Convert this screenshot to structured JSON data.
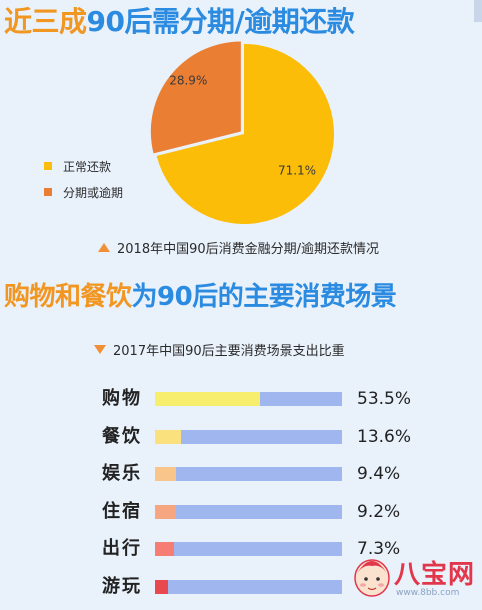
{
  "header": {
    "title_highlight": "近三成",
    "title_rest": "90后需分期/逾期还款"
  },
  "pie_section": {
    "caption": "2018年中国90后消费金融分期/逾期还款情况"
  },
  "section2": {
    "title_highlight": "购物和餐饮",
    "title_rest": "为90后的主要消费场景"
  },
  "bar_section": {
    "caption": "2017年中国90后主要消费场景支出比重"
  },
  "colors": {
    "accent_orange": "#f29622",
    "title_blue": "#2a8be0",
    "pie_normal": "#fbbd07",
    "pie_overdue": "#ea7e33",
    "bar_track": "#9fb6ee"
  },
  "watermark": {
    "text": "八宝网",
    "url": "www.8bb.com"
  },
  "chart_data": [
    {
      "type": "pie",
      "title": "2018年中国90后消费金融分期/逾期还款情况",
      "slices": [
        {
          "label": "正常还款",
          "value": 71.1,
          "value_label": "71.1%",
          "color": "#fbbd07"
        },
        {
          "label": "分期或逾期",
          "value": 28.9,
          "value_label": "28.9%",
          "color": "#ea7e33"
        }
      ],
      "legend_position": "left"
    },
    {
      "type": "bar",
      "orientation": "horizontal",
      "title": "2017年中国90后主要消费场景支出比重",
      "categories": [
        "购物",
        "餐饮",
        "娱乐",
        "住宿",
        "出行",
        "游玩"
      ],
      "values": [
        53.5,
        13.6,
        9.4,
        9.2,
        7.3,
        null
      ],
      "value_labels": [
        "53.5%",
        "13.6%",
        "9.4%",
        "9.2%",
        "7.3%",
        "%"
      ],
      "fill_fractions": [
        0.56,
        0.14,
        0.11,
        0.11,
        0.1,
        0.07
      ],
      "colors": [
        "#f8ee6e",
        "#fbe07e",
        "#f9c58b",
        "#f7a682",
        "#f57d73",
        "#e8494e"
      ],
      "track_color": "#9fb6ee"
    }
  ]
}
